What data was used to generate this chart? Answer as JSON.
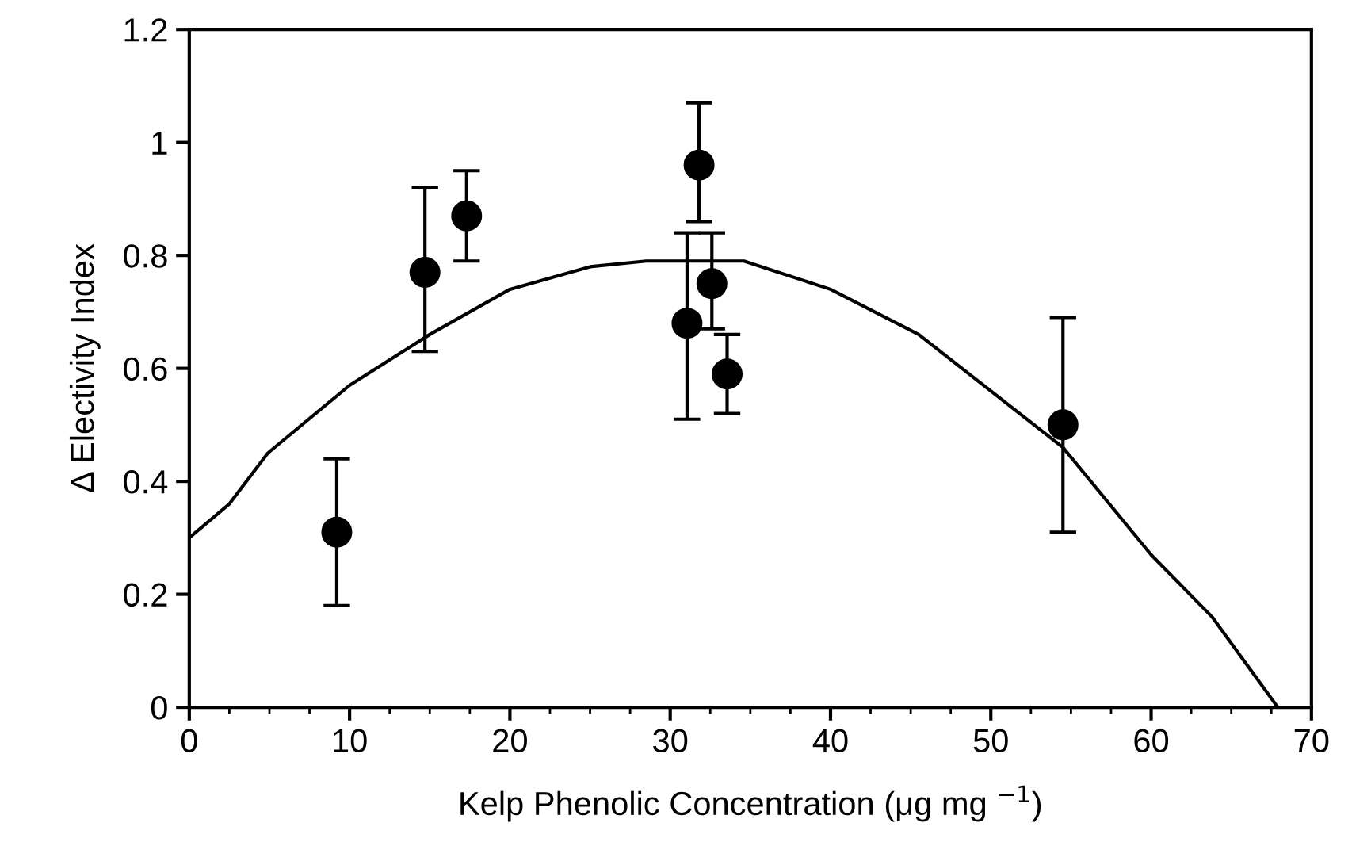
{
  "chart_data": {
    "type": "scatter",
    "xlabel": "Kelp Phenolic Concentration (μg mg $^{−1}$)",
    "ylabel": "Δ Electivity Index",
    "xlim": [
      0,
      70
    ],
    "xticks": [
      0,
      10,
      20,
      30,
      40,
      50,
      60,
      70
    ],
    "ylim": [
      0,
      1.2
    ],
    "yticks": [
      0,
      {
        "value": 0.2,
        "label": "0.2"
      },
      {
        "value": 0.4,
        "label": "0.4"
      },
      {
        "value": 0.6,
        "label": "0.6"
      },
      {
        "value": 0.8,
        "label": "0.8"
      },
      1,
      {
        "value": 1.2,
        "label": "1.2"
      }
    ],
    "grid": false,
    "marker": "circle",
    "series": [
      {
        "color": "#000000",
        "x": [
          9.2,
          14.7,
          17.3,
          31.05,
          31.8,
          32.6,
          33.55,
          54.5
        ],
        "values": [
          0.31,
          0.77,
          0.87,
          0.68,
          0.96,
          0.75,
          0.59,
          0.5
        ],
        "errors": [
          [
            0.18,
            0.44
          ],
          [
            0.63,
            0.92
          ],
          [
            0.79,
            0.95
          ],
          [
            0.51,
            0.84
          ],
          [
            0.86,
            1.07
          ],
          [
            0.67,
            0.84
          ],
          [
            0.52,
            0.66
          ],
          [
            0.31,
            0.69
          ]
        ]
      },
      {
        "type": "line",
        "color": "#000000",
        "marker": "none",
        "line_style": "solid",
        "x": [
          0,
          2.5,
          4.9,
          10,
          15,
          20,
          25,
          28.5,
          30,
          34.6,
          40,
          45.5,
          50,
          54.5,
          60,
          63.8,
          67.9
        ],
        "values": [
          0.3,
          0.36,
          0.45,
          0.57,
          0.66,
          0.74,
          0.78,
          0.79,
          0.79,
          0.79,
          0.74,
          0.66,
          0.56,
          0.46,
          0.27,
          0.16,
          0
        ]
      }
    ]
  }
}
